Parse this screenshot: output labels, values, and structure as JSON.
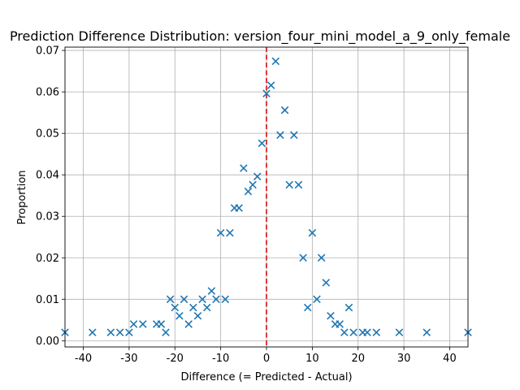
{
  "chart_data": {
    "type": "scatter",
    "title": "Prediction Difference Distribution: version_four_mini_model_a_9_only_female",
    "xlabel": "Difference (= Predicted - Actual)",
    "ylabel": "Proportion",
    "xlim": [
      -44,
      44
    ],
    "ylim": [
      -0.0015,
      0.0708
    ],
    "xticks": [
      -40,
      -30,
      -20,
      -10,
      0,
      10,
      20,
      30,
      40
    ],
    "yticks": [
      0.0,
      0.01,
      0.02,
      0.03,
      0.04,
      0.05,
      0.06,
      0.07
    ],
    "ytick_labels": [
      "0.00",
      "0.01",
      "0.02",
      "0.03",
      "0.04",
      "0.05",
      "0.06",
      "0.07"
    ],
    "grid": true,
    "marker": "x",
    "marker_color": "#1f77b4",
    "reference_line": {
      "x": 0,
      "color": "#d62728",
      "style": "dashed"
    },
    "points": [
      {
        "x": -44,
        "y": 0.002
      },
      {
        "x": -38,
        "y": 0.002
      },
      {
        "x": -34,
        "y": 0.002
      },
      {
        "x": -32,
        "y": 0.002
      },
      {
        "x": -30,
        "y": 0.002
      },
      {
        "x": -29,
        "y": 0.004
      },
      {
        "x": -27,
        "y": 0.004
      },
      {
        "x": -24,
        "y": 0.004
      },
      {
        "x": -23,
        "y": 0.004
      },
      {
        "x": -22,
        "y": 0.002
      },
      {
        "x": -21,
        "y": 0.01
      },
      {
        "x": -20,
        "y": 0.008
      },
      {
        "x": -19,
        "y": 0.006
      },
      {
        "x": -18,
        "y": 0.01
      },
      {
        "x": -17,
        "y": 0.004
      },
      {
        "x": -16,
        "y": 0.008
      },
      {
        "x": -15,
        "y": 0.006
      },
      {
        "x": -14,
        "y": 0.01
      },
      {
        "x": -13,
        "y": 0.008
      },
      {
        "x": -12,
        "y": 0.012
      },
      {
        "x": -11,
        "y": 0.01
      },
      {
        "x": -10,
        "y": 0.026
      },
      {
        "x": -9,
        "y": 0.01
      },
      {
        "x": -8,
        "y": 0.026
      },
      {
        "x": -7,
        "y": 0.032
      },
      {
        "x": -6,
        "y": 0.032
      },
      {
        "x": -5,
        "y": 0.0416
      },
      {
        "x": -4,
        "y": 0.036
      },
      {
        "x": -3,
        "y": 0.0376
      },
      {
        "x": -2,
        "y": 0.0396
      },
      {
        "x": -1,
        "y": 0.0476
      },
      {
        "x": 0,
        "y": 0.0596
      },
      {
        "x": 1,
        "y": 0.0616
      },
      {
        "x": 2,
        "y": 0.0674
      },
      {
        "x": 3,
        "y": 0.0496
      },
      {
        "x": 4,
        "y": 0.0556
      },
      {
        "x": 5,
        "y": 0.0376
      },
      {
        "x": 6,
        "y": 0.0496
      },
      {
        "x": 7,
        "y": 0.0376
      },
      {
        "x": 8,
        "y": 0.02
      },
      {
        "x": 9,
        "y": 0.008
      },
      {
        "x": 10,
        "y": 0.026
      },
      {
        "x": 11,
        "y": 0.01
      },
      {
        "x": 12,
        "y": 0.02
      },
      {
        "x": 13,
        "y": 0.014
      },
      {
        "x": 14,
        "y": 0.006
      },
      {
        "x": 15,
        "y": 0.004
      },
      {
        "x": 16,
        "y": 0.004
      },
      {
        "x": 17,
        "y": 0.002
      },
      {
        "x": 18,
        "y": 0.008
      },
      {
        "x": 19,
        "y": 0.002
      },
      {
        "x": 21,
        "y": 0.002
      },
      {
        "x": 22,
        "y": 0.002
      },
      {
        "x": 24,
        "y": 0.002
      },
      {
        "x": 29,
        "y": 0.002
      },
      {
        "x": 35,
        "y": 0.002
      },
      {
        "x": 44,
        "y": 0.002
      }
    ]
  }
}
